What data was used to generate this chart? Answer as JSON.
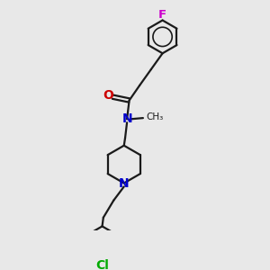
{
  "bg_color": "#e8e8e8",
  "bond_color": "#1a1a1a",
  "atom_colors": {
    "O": "#cc0000",
    "N_amide": "#0000cc",
    "N_pipe": "#0000cc",
    "F": "#cc00cc",
    "Cl": "#00aa00"
  },
  "line_width": 1.6,
  "font_size": 9.5,
  "fig_size": [
    3.0,
    3.0
  ],
  "dpi": 100,
  "xlim": [
    0,
    10
  ],
  "ylim": [
    0,
    10
  ]
}
